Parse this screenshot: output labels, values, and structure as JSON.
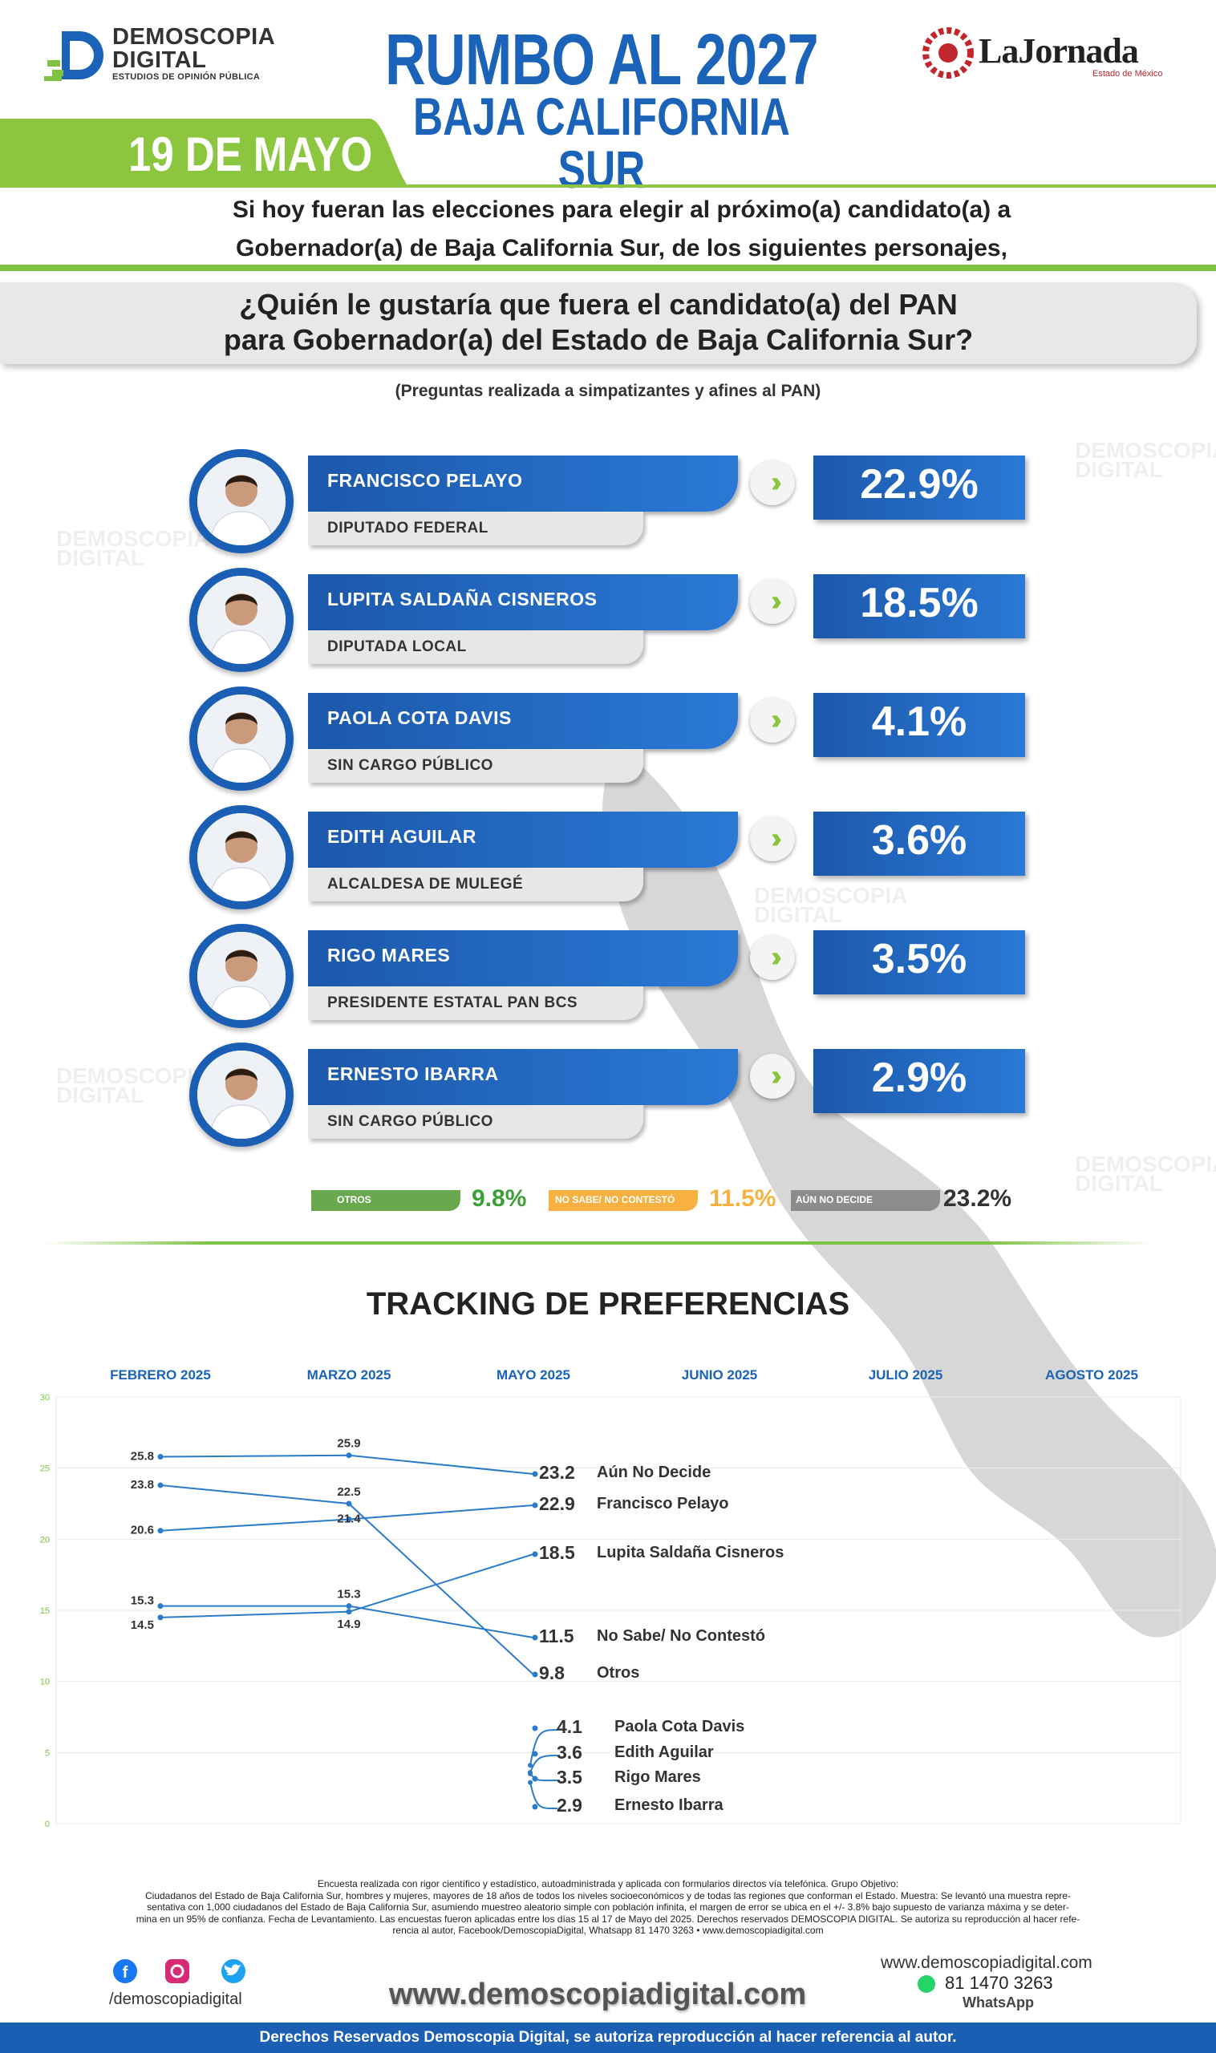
{
  "header": {
    "brand_name_1": "DEMOSCOPIA",
    "brand_name_2": "DIGITAL",
    "brand_tagline": "ESTUDIOS DE OPINIÓN PÚBLICA",
    "title": "RUMBO AL 2027",
    "subtitle": "BAJA CALIFORNIA SUR",
    "partner_name": "LaJornada",
    "partner_sub": "Estado de México",
    "date": "19 DE MAYO"
  },
  "intro": {
    "line1": "Si hoy fueran las elecciones para elegir al próximo(a) candidato(a) a",
    "line2": "Gobernador(a) de Baja California Sur, de los siguientes personajes,"
  },
  "question": {
    "line1": "¿Quién le gustaría que fuera el candidato(a) del PAN",
    "line2": "para Gobernador(a) del Estado de Baja California Sur?",
    "note": "(Preguntas realizada a simpatizantes y afines al PAN)"
  },
  "candidates": [
    {
      "name": "FRANCISCO PELAYO",
      "role": "DIPUTADO FEDERAL",
      "pct": "22.9%"
    },
    {
      "name": "LUPITA SALDAÑA CISNEROS",
      "role": "DIPUTADA LOCAL",
      "pct": "18.5%"
    },
    {
      "name": "PAOLA COTA DAVIS",
      "role": "SIN CARGO PÚBLICO",
      "pct": "4.1%"
    },
    {
      "name": "EDITH AGUILAR",
      "role": "ALCALDESA DE MULEGÉ",
      "pct": "3.6%"
    },
    {
      "name": "RIGO MARES",
      "role": "PRESIDENTE ESTATAL PAN BCS",
      "pct": "3.5%"
    },
    {
      "name": "ERNESTO IBARRA",
      "role": "SIN CARGO PÚBLICO",
      "pct": "2.9%"
    }
  ],
  "others": [
    {
      "label": "OTROS",
      "value": "9.8%",
      "color": "#6aa84f"
    },
    {
      "label": "NO SABE/ NO CONTESTÓ",
      "value": "11.5%",
      "color": "#f6b141"
    },
    {
      "label": "AÚN NO DECIDE",
      "value": "23.2%",
      "color": "#8c8c8c"
    }
  ],
  "tracking_title": "TRACKING DE PREFERENCIAS",
  "chart_data": [
    {
      "type": "bar",
      "categories": [
        "FRANCISCO PELAYO",
        "LUPITA SALDAÑA CISNEROS",
        "PAOLA COTA DAVIS",
        "EDITH AGUILAR",
        "RIGO MARES",
        "ERNESTO IBARRA",
        "OTROS",
        "NO SABE/ NO CONTESTÓ",
        "AÚN NO DECIDE"
      ],
      "values": [
        22.9,
        18.5,
        4.1,
        3.6,
        3.5,
        2.9,
        9.8,
        11.5,
        23.2
      ],
      "title": "¿Quién le gustaría que fuera el candidato(a) del PAN para Gobernador(a) del Estado de Baja California Sur?"
    },
    {
      "type": "line",
      "title": "TRACKING DE PREFERENCIAS",
      "x": [
        "FEBRERO 2025",
        "MARZO 2025",
        "MAYO 2025",
        "JUNIO 2025",
        "JULIO 2025",
        "AGOSTO 2025"
      ],
      "ylim": [
        0,
        30
      ],
      "yticks": [
        0,
        5,
        10,
        15,
        20,
        25,
        30
      ],
      "grid": true,
      "series": [
        {
          "name": "Aún No Decide",
          "values": [
            25.8,
            25.9,
            23.2,
            null,
            null,
            null
          ]
        },
        {
          "name": "Francisco Pelayo",
          "values": [
            20.6,
            21.4,
            22.9,
            null,
            null,
            null
          ]
        },
        {
          "name": "Lupita Saldaña Cisneros",
          "values": [
            14.5,
            14.9,
            18.5,
            null,
            null,
            null
          ]
        },
        {
          "name": "No Sabe/ No Contestó",
          "values": [
            15.3,
            15.3,
            11.5,
            null,
            null,
            null
          ]
        },
        {
          "name": "Otros",
          "values": [
            23.8,
            22.5,
            9.8,
            null,
            null,
            null
          ]
        },
        {
          "name": "Paola Cota Davis",
          "values": [
            null,
            null,
            4.1,
            null,
            null,
            null
          ]
        },
        {
          "name": "Edith Aguilar",
          "values": [
            null,
            null,
            3.6,
            null,
            null,
            null
          ]
        },
        {
          "name": "Rigo Mares",
          "values": [
            null,
            null,
            3.5,
            null,
            null,
            null
          ]
        },
        {
          "name": "Ernesto Ibarra",
          "values": [
            null,
            null,
            2.9,
            null,
            null,
            null
          ]
        }
      ],
      "line_color": "#2a7bc9"
    }
  ],
  "footer": {
    "methodology_1": "Encuesta realizada con rigor científico y estadístico, autoadministrada y aplicada con formularios directos vía telefónica. Grupo Objetivo:",
    "methodology_2": "Ciudadanos del Estado de Baja California Sur, hombres y mujeres, mayores de 18 años de todos los niveles socioeconómicos y de todas las regiones que conforman el Estado. Muestra: Se levantó una muestra repre-",
    "methodology_3": "sentativa con 1,000 ciudadanos del Estado de Baja California Sur, asumiendo muestreo aleatorio simple con población infinita, el margen de error se ubica en el +/- 3.8% bajo supuesto de varianza máxima y se deter-",
    "methodology_4": "mina en un 95% de confianza. Fecha de Levantamiento. Las encuestas fueron aplicadas entre los días 15 al 17 de Mayo del 2025. Derechos reservados DEMOSCOPIA DIGITAL. Se autoriza su reproducción al hacer refe-",
    "methodology_5": "rencia al autor, Facebook/DemoscopiaDigital, Whatsapp 81 1470 3263 • www.demoscopiadigital.com",
    "handle": "/demoscopiadigital",
    "site_big": "www.demoscopiadigital.com",
    "site_small": "www.demoscopiadigital.com",
    "whatsapp_number": "81 1470 3263",
    "whatsapp_label": "WhatsApp",
    "rights": "Derechos Reservados Demoscopia Digital, se autoriza reproducción al hacer referencia al autor."
  },
  "colors": {
    "brand_blue": "#1a63b8",
    "accent_green": "#7dc242",
    "lajornada_red": "#c0272d"
  }
}
